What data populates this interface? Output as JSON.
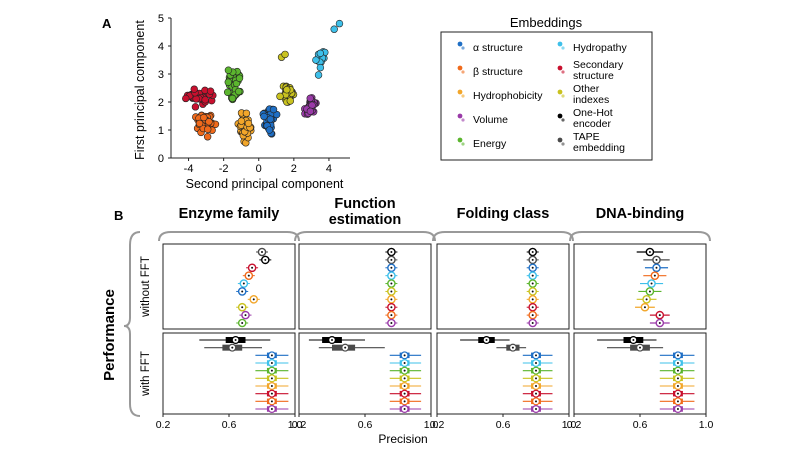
{
  "panel_a_label": "A",
  "panel_b_label": "B",
  "colors": {
    "alpha": "#1f6fc5",
    "beta": "#f06a1b",
    "hydrophobicity": "#f2a62a",
    "volume": "#9a3aa8",
    "energy": "#5bb52e",
    "hydropathy": "#3ec0ea",
    "secondary": "#c8102e",
    "other": "#c9c21f",
    "onehot": "#000000",
    "tape": "#4a4a4a"
  },
  "legend": {
    "title": "Embeddings",
    "items": [
      {
        "key": "alpha",
        "label": "α structure"
      },
      {
        "key": "beta",
        "label": "β structure"
      },
      {
        "key": "hydrophobicity",
        "label": "Hydrophobicity"
      },
      {
        "key": "volume",
        "label": "Volume"
      },
      {
        "key": "energy",
        "label": "Energy"
      },
      {
        "key": "hydropathy",
        "label": "Hydropathy"
      },
      {
        "key": "secondary",
        "label": "Secondary structure"
      },
      {
        "key": "other",
        "label": "Other indexes"
      },
      {
        "key": "onehot",
        "label": "One-Hot encoder"
      },
      {
        "key": "tape",
        "label": "TAPE embedding"
      }
    ]
  },
  "chart_data": [
    {
      "type": "scatter",
      "xlabel": "Second principal component",
      "ylabel": "First principal component",
      "xlim": [
        -5,
        5.2
      ],
      "ylim": [
        0,
        5
      ],
      "xticks": [
        "-4",
        "-2",
        "0",
        "2",
        "4"
      ],
      "yticks": [
        "0",
        "1",
        "2",
        "3",
        "4",
        "5"
      ],
      "clusters": [
        {
          "key": "secondary",
          "x_center": -3.5,
          "y_center": 2.2,
          "spread_x": 0.6,
          "spread_y": 0.25,
          "n": 36
        },
        {
          "key": "beta",
          "x_center": -3.0,
          "y_center": 1.2,
          "spread_x": 0.45,
          "spread_y": 0.35,
          "n": 40
        },
        {
          "key": "energy",
          "x_center": -1.4,
          "y_center": 2.6,
          "spread_x": 0.35,
          "spread_y": 0.45,
          "n": 36
        },
        {
          "key": "hydrophobicity",
          "x_center": -0.8,
          "y_center": 1.1,
          "spread_x": 0.35,
          "spread_y": 0.45,
          "n": 40
        },
        {
          "key": "alpha",
          "x_center": 0.6,
          "y_center": 1.4,
          "spread_x": 0.3,
          "spread_y": 0.45,
          "n": 38
        },
        {
          "key": "other",
          "x_center": 1.6,
          "y_center": 2.3,
          "spread_x": 0.35,
          "spread_y": 0.35,
          "n": 34
        },
        {
          "key": "volume",
          "x_center": 3.0,
          "y_center": 1.8,
          "spread_x": 0.3,
          "spread_y": 0.3,
          "n": 34
        },
        {
          "key": "hydropathy",
          "x_center": 3.5,
          "y_center": 3.6,
          "spread_x": 0.25,
          "spread_y": 0.55,
          "n": 14
        }
      ],
      "extra_points": [
        {
          "key": "hydropathy",
          "x": 4.3,
          "y": 4.6
        },
        {
          "key": "hydropathy",
          "x": 4.6,
          "y": 4.8
        },
        {
          "key": "other",
          "x": 1.3,
          "y": 3.6
        },
        {
          "key": "other",
          "x": 1.5,
          "y": 3.7
        }
      ]
    },
    {
      "type": "boxplot",
      "panel_title": "Enzyme family",
      "xlabel": "Precision",
      "xlim": [
        0.2,
        1.0
      ],
      "xticks": [
        "0.2",
        "0.6",
        "1.0"
      ],
      "group_labels": {
        "without": "without FFT",
        "with": "with FFT"
      },
      "without_fft": [
        {
          "key": "tape",
          "median": 0.8
        },
        {
          "key": "onehot",
          "median": 0.82
        },
        {
          "key": "secondary",
          "median": 0.74
        },
        {
          "key": "beta",
          "median": 0.72
        },
        {
          "key": "hydropathy",
          "median": 0.69
        },
        {
          "key": "alpha",
          "median": 0.68
        },
        {
          "key": "hydrophobicity",
          "median": 0.75
        },
        {
          "key": "other",
          "median": 0.68
        },
        {
          "key": "volume",
          "median": 0.7
        },
        {
          "key": "energy",
          "median": 0.68
        }
      ],
      "with_fft": [
        {
          "key": "onehot",
          "median": 0.64,
          "q1": 0.58,
          "q3": 0.7,
          "wmin": 0.42,
          "wmax": 0.85
        },
        {
          "key": "tape",
          "median": 0.62,
          "q1": 0.56,
          "q3": 0.68,
          "wmin": 0.45,
          "wmax": 0.8
        },
        {
          "key": "alpha",
          "median": 0.86,
          "q1": 0.83,
          "q3": 0.89,
          "wmin": 0.76,
          "wmax": 0.96
        },
        {
          "key": "hydropathy",
          "median": 0.86,
          "q1": 0.83,
          "q3": 0.89,
          "wmin": 0.76,
          "wmax": 0.96
        },
        {
          "key": "energy",
          "median": 0.86,
          "q1": 0.83,
          "q3": 0.89,
          "wmin": 0.76,
          "wmax": 0.96
        },
        {
          "key": "other",
          "median": 0.86,
          "q1": 0.83,
          "q3": 0.89,
          "wmin": 0.76,
          "wmax": 0.96
        },
        {
          "key": "hydrophobicity",
          "median": 0.86,
          "q1": 0.83,
          "q3": 0.89,
          "wmin": 0.76,
          "wmax": 0.96
        },
        {
          "key": "secondary",
          "median": 0.86,
          "q1": 0.83,
          "q3": 0.89,
          "wmin": 0.76,
          "wmax": 0.96
        },
        {
          "key": "beta",
          "median": 0.86,
          "q1": 0.83,
          "q3": 0.89,
          "wmin": 0.76,
          "wmax": 0.96
        },
        {
          "key": "volume",
          "median": 0.86,
          "q1": 0.83,
          "q3": 0.89,
          "wmin": 0.76,
          "wmax": 0.96
        }
      ]
    },
    {
      "type": "boxplot",
      "panel_title": "Function estimation",
      "xlabel": "Precision",
      "xlim": [
        0.2,
        1.0
      ],
      "xticks": [
        "0.2",
        "0.6",
        "1.0"
      ],
      "without_fft": [
        {
          "key": "onehot",
          "median": 0.76
        },
        {
          "key": "tape",
          "median": 0.76
        },
        {
          "key": "alpha",
          "median": 0.76
        },
        {
          "key": "hydropathy",
          "median": 0.76
        },
        {
          "key": "energy",
          "median": 0.76
        },
        {
          "key": "other",
          "median": 0.76
        },
        {
          "key": "hydrophobicity",
          "median": 0.76
        },
        {
          "key": "secondary",
          "median": 0.76
        },
        {
          "key": "beta",
          "median": 0.76
        },
        {
          "key": "volume",
          "median": 0.76
        }
      ],
      "with_fft": [
        {
          "key": "onehot",
          "median": 0.4,
          "q1": 0.34,
          "q3": 0.46,
          "wmin": 0.26,
          "wmax": 0.6
        },
        {
          "key": "tape",
          "median": 0.48,
          "q1": 0.4,
          "q3": 0.54,
          "wmin": 0.32,
          "wmax": 0.72
        },
        {
          "key": "alpha",
          "median": 0.84,
          "q1": 0.81,
          "q3": 0.87,
          "wmin": 0.75,
          "wmax": 0.94
        },
        {
          "key": "hydropathy",
          "median": 0.84,
          "q1": 0.81,
          "q3": 0.87,
          "wmin": 0.75,
          "wmax": 0.94
        },
        {
          "key": "energy",
          "median": 0.84,
          "q1": 0.81,
          "q3": 0.87,
          "wmin": 0.75,
          "wmax": 0.94
        },
        {
          "key": "other",
          "median": 0.84,
          "q1": 0.81,
          "q3": 0.87,
          "wmin": 0.75,
          "wmax": 0.94
        },
        {
          "key": "hydrophobicity",
          "median": 0.84,
          "q1": 0.81,
          "q3": 0.87,
          "wmin": 0.75,
          "wmax": 0.94
        },
        {
          "key": "secondary",
          "median": 0.84,
          "q1": 0.81,
          "q3": 0.87,
          "wmin": 0.75,
          "wmax": 0.94
        },
        {
          "key": "beta",
          "median": 0.84,
          "q1": 0.81,
          "q3": 0.87,
          "wmin": 0.75,
          "wmax": 0.94
        },
        {
          "key": "volume",
          "median": 0.84,
          "q1": 0.81,
          "q3": 0.87,
          "wmin": 0.75,
          "wmax": 0.94
        }
      ]
    },
    {
      "type": "boxplot",
      "panel_title": "Folding class",
      "xlabel": "Precision",
      "xlim": [
        0.2,
        1.0
      ],
      "xticks": [
        "0.2",
        "0.6",
        "1.0"
      ],
      "without_fft": [
        {
          "key": "onehot",
          "median": 0.78
        },
        {
          "key": "tape",
          "median": 0.78
        },
        {
          "key": "alpha",
          "median": 0.78
        },
        {
          "key": "hydropathy",
          "median": 0.78
        },
        {
          "key": "energy",
          "median": 0.78
        },
        {
          "key": "other",
          "median": 0.78
        },
        {
          "key": "hydrophobicity",
          "median": 0.78
        },
        {
          "key": "secondary",
          "median": 0.78
        },
        {
          "key": "beta",
          "median": 0.78
        },
        {
          "key": "volume",
          "median": 0.78
        }
      ],
      "with_fft": [
        {
          "key": "onehot",
          "median": 0.5,
          "q1": 0.45,
          "q3": 0.55,
          "wmin": 0.34,
          "wmax": 0.64
        },
        {
          "key": "tape",
          "median": 0.66,
          "q1": 0.62,
          "q3": 0.7,
          "wmin": 0.56,
          "wmax": 0.74
        },
        {
          "key": "alpha",
          "median": 0.8,
          "q1": 0.77,
          "q3": 0.83,
          "wmin": 0.72,
          "wmax": 0.9
        },
        {
          "key": "hydropathy",
          "median": 0.8,
          "q1": 0.77,
          "q3": 0.83,
          "wmin": 0.72,
          "wmax": 0.9
        },
        {
          "key": "energy",
          "median": 0.8,
          "q1": 0.77,
          "q3": 0.83,
          "wmin": 0.72,
          "wmax": 0.9
        },
        {
          "key": "other",
          "median": 0.8,
          "q1": 0.77,
          "q3": 0.83,
          "wmin": 0.72,
          "wmax": 0.9
        },
        {
          "key": "hydrophobicity",
          "median": 0.8,
          "q1": 0.77,
          "q3": 0.83,
          "wmin": 0.72,
          "wmax": 0.9
        },
        {
          "key": "secondary",
          "median": 0.8,
          "q1": 0.77,
          "q3": 0.83,
          "wmin": 0.72,
          "wmax": 0.9
        },
        {
          "key": "beta",
          "median": 0.8,
          "q1": 0.77,
          "q3": 0.83,
          "wmin": 0.72,
          "wmax": 0.9
        },
        {
          "key": "volume",
          "median": 0.8,
          "q1": 0.77,
          "q3": 0.83,
          "wmin": 0.72,
          "wmax": 0.9
        }
      ]
    },
    {
      "type": "boxplot",
      "panel_title": "DNA-binding",
      "xlabel": "Precision",
      "xlim": [
        0.2,
        1.0
      ],
      "xticks": [
        "0.2",
        "0.6",
        "1.0"
      ],
      "without_fft": [
        {
          "key": "onehot",
          "median": 0.66,
          "wmin": 0.58,
          "wmax": 0.74
        },
        {
          "key": "tape",
          "median": 0.7,
          "wmin": 0.62,
          "wmax": 0.78
        },
        {
          "key": "alpha",
          "median": 0.7,
          "wmin": 0.63,
          "wmax": 0.77
        },
        {
          "key": "beta",
          "median": 0.69,
          "wmin": 0.62,
          "wmax": 0.76
        },
        {
          "key": "hydropathy",
          "median": 0.67,
          "wmin": 0.6,
          "wmax": 0.74
        },
        {
          "key": "energy",
          "median": 0.66,
          "wmin": 0.59,
          "wmax": 0.73
        },
        {
          "key": "other",
          "median": 0.64,
          "wmin": 0.58,
          "wmax": 0.7
        },
        {
          "key": "hydrophobicity",
          "median": 0.63,
          "wmin": 0.57,
          "wmax": 0.69
        },
        {
          "key": "secondary",
          "median": 0.72,
          "wmin": 0.66,
          "wmax": 0.78
        },
        {
          "key": "volume",
          "median": 0.72,
          "wmin": 0.66,
          "wmax": 0.78
        }
      ],
      "with_fft": [
        {
          "key": "onehot",
          "median": 0.56,
          "q1": 0.5,
          "q3": 0.62,
          "wmin": 0.34,
          "wmax": 0.7
        },
        {
          "key": "tape",
          "median": 0.6,
          "q1": 0.54,
          "q3": 0.66,
          "wmin": 0.4,
          "wmax": 0.74
        },
        {
          "key": "alpha",
          "median": 0.83,
          "q1": 0.8,
          "q3": 0.86,
          "wmin": 0.72,
          "wmax": 0.93
        },
        {
          "key": "hydropathy",
          "median": 0.83,
          "q1": 0.8,
          "q3": 0.86,
          "wmin": 0.72,
          "wmax": 0.93
        },
        {
          "key": "energy",
          "median": 0.83,
          "q1": 0.8,
          "q3": 0.86,
          "wmin": 0.72,
          "wmax": 0.93
        },
        {
          "key": "other",
          "median": 0.83,
          "q1": 0.8,
          "q3": 0.86,
          "wmin": 0.72,
          "wmax": 0.93
        },
        {
          "key": "hydrophobicity",
          "median": 0.83,
          "q1": 0.8,
          "q3": 0.86,
          "wmin": 0.72,
          "wmax": 0.93
        },
        {
          "key": "secondary",
          "median": 0.83,
          "q1": 0.8,
          "q3": 0.86,
          "wmin": 0.72,
          "wmax": 0.93
        },
        {
          "key": "beta",
          "median": 0.83,
          "q1": 0.8,
          "q3": 0.86,
          "wmin": 0.72,
          "wmax": 0.93
        },
        {
          "key": "volume",
          "median": 0.83,
          "q1": 0.8,
          "q3": 0.86,
          "wmin": 0.72,
          "wmax": 0.93
        }
      ]
    }
  ],
  "panel_b": {
    "performance_label": "Performance",
    "precision_label": "Precision"
  }
}
